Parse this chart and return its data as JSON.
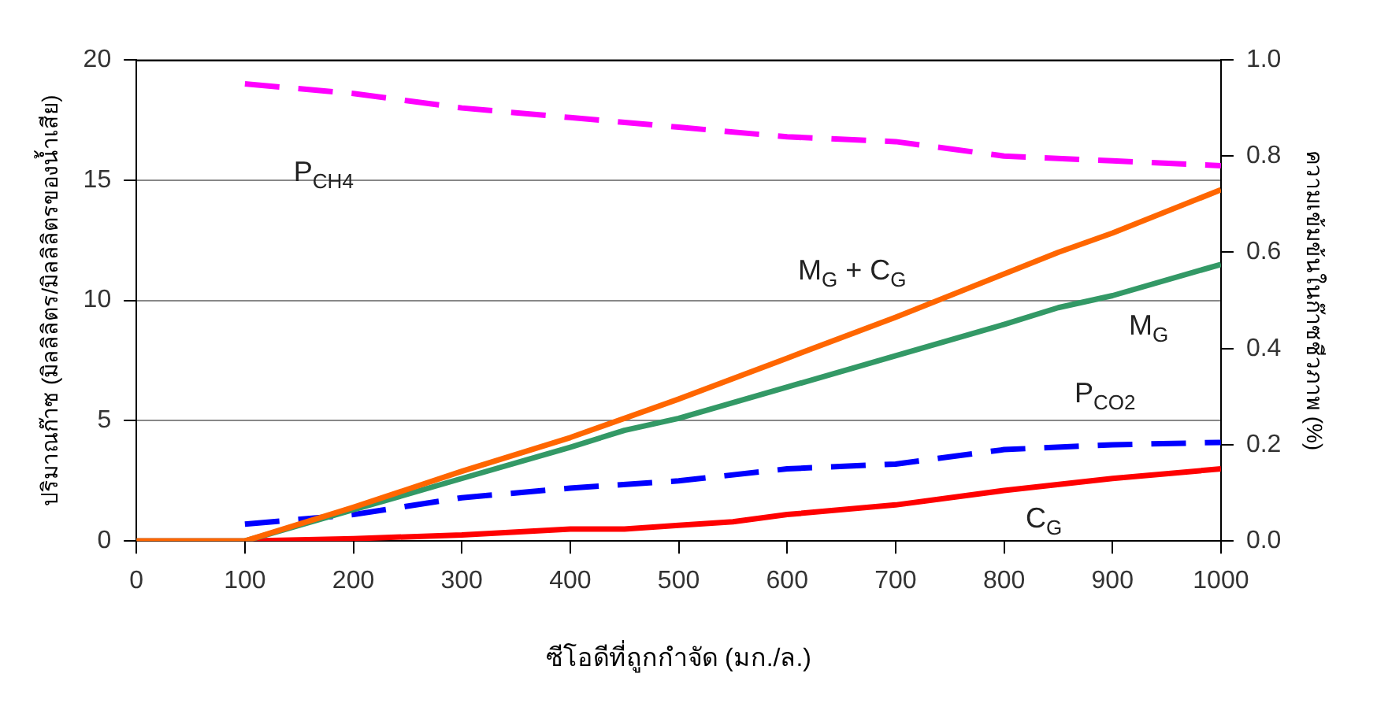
{
  "chart_data": {
    "type": "line",
    "xlabel": "ซีโอดีที่ถูกกำจัด (มก./ล.)",
    "ylabel": "ปริมาณก๊าซ (มิลลิลิตร/มิลลิลิตรของน้ำเสีย)",
    "y2label": "ความเข้มข้นในก๊าซชีวภาพ (%)",
    "xlim": [
      0,
      1000
    ],
    "xticks": [
      0,
      100,
      200,
      300,
      400,
      500,
      600,
      700,
      800,
      900,
      1000
    ],
    "ylim": [
      0,
      20
    ],
    "yticks": [
      0,
      5,
      10,
      15,
      20
    ],
    "y2lim": [
      0,
      1
    ],
    "y2ticks": [
      {
        "value": 0,
        "label": "0.0"
      },
      {
        "value": 0.2,
        "label": "0.2"
      },
      {
        "value": 0.4,
        "label": "0.4"
      },
      {
        "value": 0.6,
        "label": "0.6"
      },
      {
        "value": 0.8,
        "label": "0.8"
      },
      {
        "value": 1,
        "label": "1.0"
      }
    ],
    "grid": "y",
    "legend": false,
    "marker": "none",
    "series": [
      {
        "name": "P$_{CH4}$",
        "color": "#ff00ff",
        "axis": "y2",
        "line_style": "dashed",
        "x": [
          100,
          200,
          300,
          400,
          500,
          600,
          700,
          800,
          900,
          1000
        ],
        "values": [
          0.95,
          0.93,
          0.9,
          0.88,
          0.86,
          0.84,
          0.83,
          0.8,
          0.79,
          0.78
        ]
      },
      {
        "name": "M$_{G}$ + C$_{G}$",
        "color": "#ff6600",
        "line_style": "solid",
        "x": [
          0,
          100,
          200,
          300,
          400,
          500,
          600,
          700,
          800,
          850,
          900,
          1000
        ],
        "values": [
          0,
          0,
          1.4,
          2.9,
          4.3,
          5.9,
          7.6,
          9.3,
          11.1,
          12.0,
          12.8,
          14.6
        ]
      },
      {
        "name": "M$_{G}$",
        "color": "#339966",
        "line_style": "solid",
        "x": [
          0,
          100,
          200,
          300,
          400,
          450,
          500,
          600,
          700,
          800,
          850,
          900,
          1000
        ],
        "values": [
          0,
          0,
          1.3,
          2.6,
          3.9,
          4.6,
          5.1,
          6.4,
          7.7,
          9.0,
          9.7,
          10.2,
          11.5
        ]
      },
      {
        "name": "P$_{CO2}$",
        "color": "#0000ff",
        "axis": "y2",
        "line_style": "dashed",
        "x": [
          100,
          200,
          300,
          400,
          500,
          600,
          700,
          800,
          900,
          1000
        ],
        "values": [
          0.035,
          0.055,
          0.09,
          0.11,
          0.125,
          0.15,
          0.16,
          0.19,
          0.2,
          0.205
        ]
      },
      {
        "name": "C$_{G}$",
        "color": "#ff0000",
        "line_style": "solid",
        "x": [
          0,
          100,
          200,
          300,
          400,
          450,
          500,
          550,
          600,
          700,
          800,
          900,
          1000
        ],
        "values": [
          0,
          0,
          0.1,
          0.25,
          0.5,
          0.5,
          0.65,
          0.8,
          1.1,
          1.5,
          2.1,
          2.6,
          3.0
        ]
      }
    ]
  }
}
